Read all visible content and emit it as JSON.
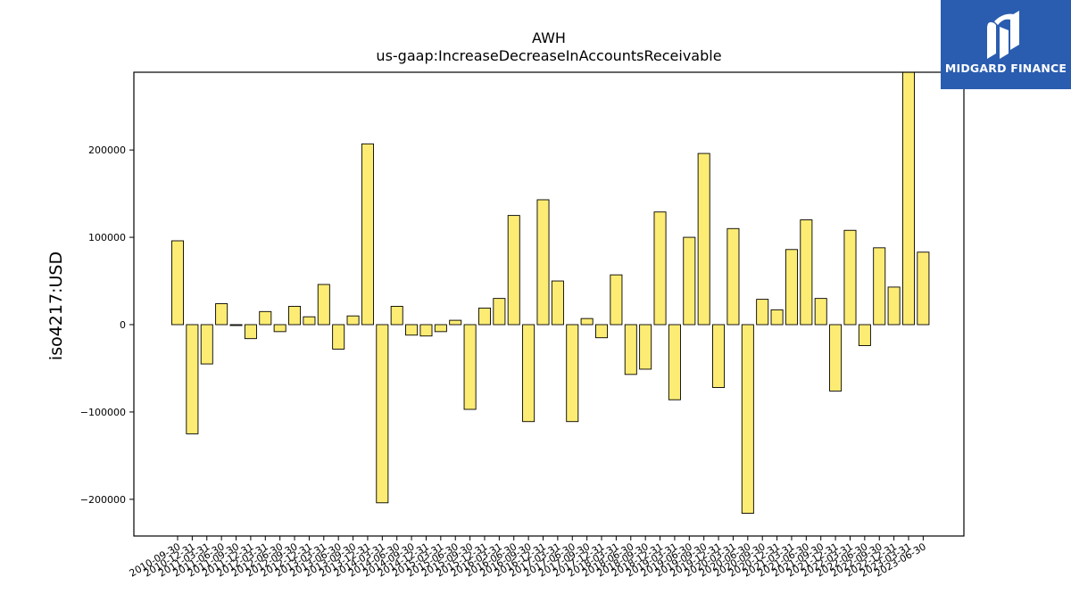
{
  "chart_data": {
    "type": "bar",
    "title": "AWH",
    "subtitle": "us-gaap:IncreaseDecreaseInAccountsReceivable",
    "xlabel": "",
    "ylabel": "iso4217:USD",
    "ylim": [
      -242000,
      289000
    ],
    "yticks": [
      -200000,
      -100000,
      0,
      100000,
      200000
    ],
    "ytick_labels": [
      "−200000",
      "−100000",
      "0",
      "100000",
      "200000"
    ],
    "bar_color": "#fdec74",
    "bar_edge_color": "#000000",
    "grid": false,
    "categories": [
      "2010-09-30",
      "2010-12-31",
      "2011-03-31",
      "2011-06-30",
      "2011-09-30",
      "2011-12-31",
      "2012-03-31",
      "2012-06-30",
      "2012-09-30",
      "2012-12-31",
      "2013-03-31",
      "2013-06-30",
      "2013-09-30",
      "2013-12-31",
      "2014-03-31",
      "2014-06-30",
      "2014-09-30",
      "2014-12-31",
      "2015-03-31",
      "2015-06-30",
      "2015-09-30",
      "2015-12-31",
      "2016-03-31",
      "2016-06-30",
      "2016-09-30",
      "2016-12-31",
      "2017-03-31",
      "2017-06-30",
      "2017-09-30",
      "2017-12-31",
      "2018-03-31",
      "2018-06-30",
      "2018-09-30",
      "2018-12-31",
      "2019-03-31",
      "2019-06-30",
      "2019-09-30",
      "2019-12-31",
      "2020-03-31",
      "2020-06-30",
      "2020-09-30",
      "2020-12-31",
      "2021-03-31",
      "2021-06-30",
      "2021-09-30",
      "2021-12-31",
      "2022-03-31",
      "2022-06-30",
      "2022-09-30",
      "2022-12-31",
      "2023-03-31",
      "2023-06-30"
    ],
    "values": [
      96000,
      -125000,
      -45000,
      24000,
      -1000,
      -16000,
      15000,
      -8000,
      21000,
      9000,
      46000,
      -28000,
      10000,
      207000,
      -204000,
      21000,
      -12000,
      -13000,
      -8000,
      5000,
      -97000,
      19000,
      30000,
      125000,
      -111000,
      143000,
      50000,
      -111000,
      7000,
      -15000,
      57000,
      -57000,
      -51000,
      129000,
      -86000,
      100000,
      196000,
      -72000,
      110000,
      -216000,
      29000,
      17000,
      86000,
      120000,
      30000,
      -76000,
      108000,
      -24000,
      88000,
      43000,
      295000,
      83000
    ]
  },
  "logo": {
    "text": "MIDGARD FINANCE",
    "background": "#2a5db0"
  }
}
